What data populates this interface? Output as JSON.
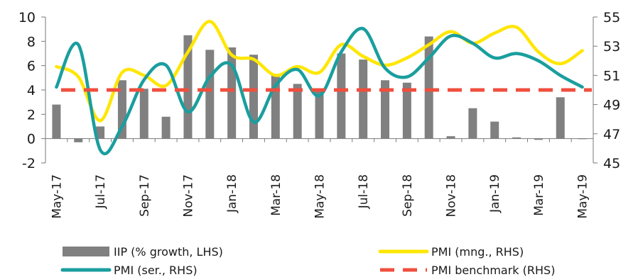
{
  "chart_data": {
    "type": "bar+line",
    "categories": [
      "May-17",
      "Jun-17",
      "Jul-17",
      "Aug-17",
      "Sep-17",
      "Oct-17",
      "Nov-17",
      "Dec-17",
      "Jan-18",
      "Feb-18",
      "Mar-18",
      "Apr-18",
      "May-18",
      "Jun-18",
      "Jul-18",
      "Aug-18",
      "Sep-18",
      "Oct-18",
      "Nov-18",
      "Dec-18",
      "Jan-19",
      "Feb-19",
      "Mar-19",
      "Apr-19",
      "May-19"
    ],
    "tick_labels": [
      "May-17",
      "Jul-17",
      "Sep-17",
      "Nov-17",
      "Jan-18",
      "Mar-18",
      "May-18",
      "Jul-18",
      "Sep-18",
      "Nov-18",
      "Jan-19",
      "Mar-19",
      "May-19"
    ],
    "y_left": {
      "ylim": [
        -2,
        10
      ],
      "ticks": [
        -2,
        0,
        2,
        4,
        6,
        8,
        10
      ]
    },
    "y_right": {
      "ylim": [
        45,
        55
      ],
      "ticks": [
        45,
        47,
        49,
        51,
        53,
        55
      ]
    },
    "series": [
      {
        "name": "IIP (% growth, LHS)",
        "type": "bar",
        "axis": "left",
        "color": "#808080",
        "values": [
          2.8,
          -0.3,
          1.0,
          4.8,
          4.1,
          1.8,
          8.5,
          7.3,
          7.5,
          6.9,
          5.3,
          4.5,
          3.9,
          7.0,
          6.5,
          4.8,
          4.6,
          8.4,
          0.2,
          2.5,
          1.4,
          0.1,
          -0.1,
          3.4,
          0.0
        ]
      },
      {
        "name": "PMI (mng., RHS)",
        "type": "line",
        "axis": "right",
        "color": "#ffe600",
        "values": [
          51.6,
          50.9,
          47.9,
          51.2,
          51.0,
          50.3,
          52.6,
          54.7,
          52.4,
          52.1,
          51.0,
          51.6,
          51.2,
          53.1,
          52.3,
          51.7,
          52.2,
          53.1,
          54.0,
          53.2,
          53.9,
          54.3,
          52.6,
          51.8,
          52.7
        ]
      },
      {
        "name": "PMI (ser., RHS)",
        "type": "line",
        "axis": "right",
        "color": "#1a9e9e",
        "values": [
          50.2,
          53.1,
          45.9,
          47.5,
          50.7,
          51.7,
          48.5,
          50.9,
          51.7,
          47.8,
          50.3,
          51.4,
          49.6,
          52.6,
          54.2,
          51.5,
          50.9,
          52.2,
          53.7,
          53.2,
          52.2,
          52.5,
          52.0,
          51.0,
          50.2
        ]
      },
      {
        "name": "PMI benchmark (RHS)",
        "type": "line",
        "axis": "right",
        "color": "#f04e3e",
        "dashed": true,
        "values": [
          50,
          50,
          50,
          50,
          50,
          50,
          50,
          50,
          50,
          50,
          50,
          50,
          50,
          50,
          50,
          50,
          50,
          50,
          50,
          50,
          50,
          50,
          50,
          50,
          50
        ]
      }
    ],
    "grid": false,
    "legend": "bottom"
  }
}
